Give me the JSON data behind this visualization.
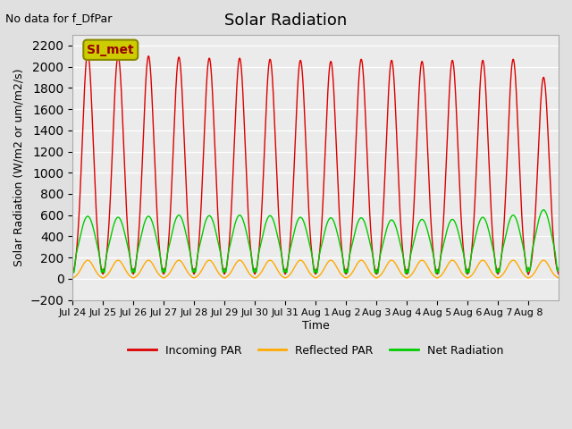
{
  "title": "Solar Radiation",
  "subtitle": "No data for f_DfPar",
  "ylabel": "Solar Radiation (W/m2 or um/m2/s)",
  "xlabel": "Time",
  "ylim": [
    -200,
    2300
  ],
  "yticks": [
    -200,
    0,
    200,
    400,
    600,
    800,
    1000,
    1200,
    1400,
    1600,
    1800,
    2000,
    2200
  ],
  "xtick_labels": [
    "Jul 24",
    "Jul 25",
    "Jul 26",
    "Jul 27",
    "Jul 28",
    "Jul 29",
    "Jul 30",
    "Jul 31",
    "Aug 1",
    "Aug 2",
    "Aug 3",
    "Aug 4",
    "Aug 5",
    "Aug 6",
    "Aug 7",
    "Aug 8"
  ],
  "bg_color": "#e0e0e0",
  "plot_bg": "#ebebeb",
  "legend_box_label": "SI_met",
  "legend_box_color": "#cccc00",
  "legend_box_text_color": "#990000",
  "incoming_color": "#dd0000",
  "reflected_color": "#ffaa00",
  "net_color": "#00cc00",
  "n_days": 16,
  "incoming_peaks": [
    2130,
    2100,
    2100,
    2090,
    2080,
    2080,
    2070,
    2060,
    2050,
    2070,
    2060,
    2050,
    2060,
    2060,
    2070,
    1900
  ],
  "reflected_peaks": [
    175,
    175,
    175,
    175,
    175,
    175,
    175,
    175,
    175,
    175,
    175,
    175,
    175,
    175,
    175,
    175
  ],
  "net_peaks": [
    590,
    580,
    590,
    600,
    595,
    600,
    595,
    580,
    575,
    575,
    555,
    560,
    560,
    580,
    600,
    650
  ],
  "net_min": -100,
  "line_width": 1.0
}
